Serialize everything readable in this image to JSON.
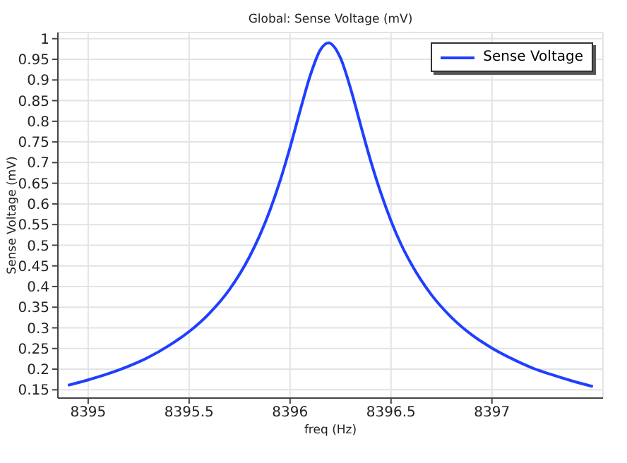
{
  "chart_data": {
    "type": "line",
    "title": "Global: Sense Voltage (mV)",
    "xlabel": "freq (Hz)",
    "ylabel": "Sense Voltage (mV)",
    "x": [
      8394.9,
      8395.0,
      8395.1,
      8395.2,
      8395.3,
      8395.4,
      8395.5,
      8395.6,
      8395.7,
      8395.8,
      8395.85,
      8395.9,
      8395.95,
      8396.0,
      8396.05,
      8396.1,
      8396.15,
      8396.19,
      8396.25,
      8396.3,
      8396.35,
      8396.4,
      8396.45,
      8396.5,
      8396.55,
      8396.6,
      8396.7,
      8396.8,
      8396.9,
      8397.0,
      8397.1,
      8397.2,
      8397.3,
      8397.4,
      8397.5
    ],
    "series": [
      {
        "name": "Sense Voltage",
        "color": "#1f3fff",
        "values": [
          0.161,
          0.174,
          0.189,
          0.207,
          0.229,
          0.257,
          0.291,
          0.335,
          0.393,
          0.473,
          0.524,
          0.584,
          0.655,
          0.737,
          0.826,
          0.911,
          0.973,
          0.99,
          0.953,
          0.879,
          0.79,
          0.703,
          0.626,
          0.559,
          0.502,
          0.455,
          0.38,
          0.325,
          0.283,
          0.251,
          0.225,
          0.203,
          0.186,
          0.171,
          0.158
        ]
      }
    ],
    "xlim": [
      8394.85,
      8397.55
    ],
    "xticks": [
      8395,
      8395.5,
      8396,
      8396.5,
      8397
    ],
    "ylim": [
      0.13,
      1.015
    ],
    "yticks": [
      0.15,
      0.2,
      0.25,
      0.3,
      0.35,
      0.4,
      0.45,
      0.5,
      0.55,
      0.6,
      0.65,
      0.7,
      0.75,
      0.8,
      0.85,
      0.9,
      0.95,
      1
    ],
    "grid": true,
    "legend": "top right",
    "marker": "none",
    "line_style": "solid"
  }
}
